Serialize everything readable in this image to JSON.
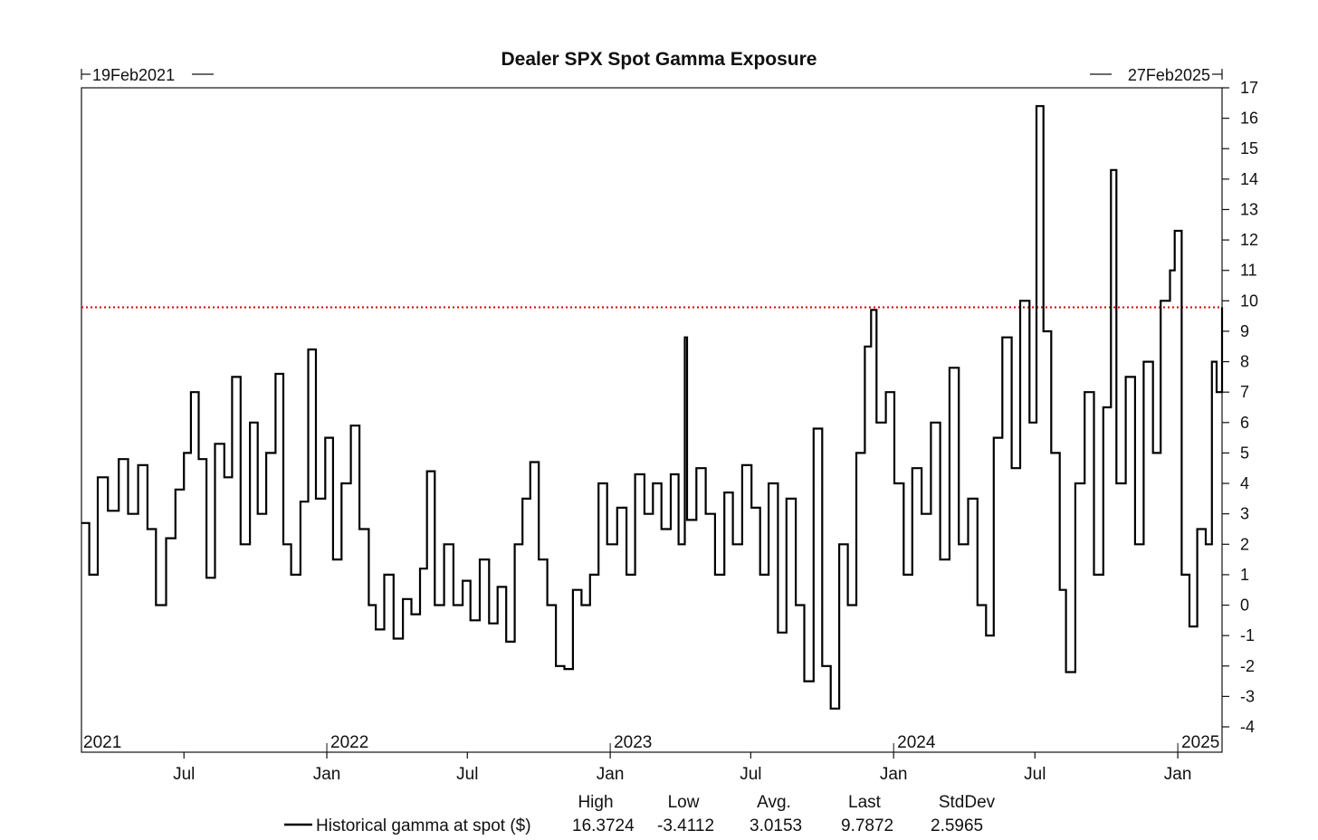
{
  "chart_data": {
    "type": "line",
    "title": "Dealer SPX Spot Gamma Exposure",
    "date_start_label": "19Feb2021",
    "date_end_label": "27Feb2025",
    "x_range": [
      "2021-02-19",
      "2025-02-27"
    ],
    "ylim": [
      -4,
      17
    ],
    "y_ticks": [
      "-4",
      "-3",
      "-2",
      "-1",
      "0",
      "1",
      "2",
      "3",
      "4",
      "5",
      "6",
      "7",
      "8",
      "9",
      "10",
      "11",
      "12",
      "13",
      "14",
      "15",
      "16",
      "17"
    ],
    "y_axis_side": "right",
    "grid": false,
    "year_labels": [
      {
        "label": "2021",
        "date": "2021-02-19"
      },
      {
        "label": "2022",
        "date": "2022-01-01"
      },
      {
        "label": "2023",
        "date": "2023-01-01"
      },
      {
        "label": "2024",
        "date": "2024-01-01"
      },
      {
        "label": "2025",
        "date": "2025-01-01"
      }
    ],
    "month_labels": [
      {
        "label": "Jul",
        "date": "2021-07-01"
      },
      {
        "label": "Jan",
        "date": "2022-01-01"
      },
      {
        "label": "Jul",
        "date": "2022-07-01"
      },
      {
        "label": "Jan",
        "date": "2023-01-01"
      },
      {
        "label": "Jul",
        "date": "2023-07-01"
      },
      {
        "label": "Jan",
        "date": "2024-01-01"
      },
      {
        "label": "Jul",
        "date": "2024-07-01"
      },
      {
        "label": "Jan",
        "date": "2025-01-01"
      }
    ],
    "reference_line": {
      "y": 9.7872,
      "color": "#d40000",
      "style": "dotted"
    },
    "series": [
      {
        "name": "Historical gamma at spot ($)",
        "color": "#000000",
        "points": [
          [
            "2021-02-19",
            2.7
          ],
          [
            "2021-03-01",
            1.0
          ],
          [
            "2021-03-12",
            4.2
          ],
          [
            "2021-03-25",
            3.1
          ],
          [
            "2021-04-08",
            4.8
          ],
          [
            "2021-04-20",
            3.0
          ],
          [
            "2021-05-03",
            4.6
          ],
          [
            "2021-05-15",
            2.5
          ],
          [
            "2021-05-26",
            0.0
          ],
          [
            "2021-06-08",
            2.2
          ],
          [
            "2021-06-20",
            3.8
          ],
          [
            "2021-07-01",
            5.0
          ],
          [
            "2021-07-10",
            7.0
          ],
          [
            "2021-07-20",
            4.8
          ],
          [
            "2021-07-30",
            0.9
          ],
          [
            "2021-08-10",
            5.3
          ],
          [
            "2021-08-22",
            4.2
          ],
          [
            "2021-09-01",
            7.5
          ],
          [
            "2021-09-12",
            2.0
          ],
          [
            "2021-09-24",
            6.0
          ],
          [
            "2021-10-04",
            3.0
          ],
          [
            "2021-10-15",
            5.0
          ],
          [
            "2021-10-27",
            7.6
          ],
          [
            "2021-11-06",
            2.0
          ],
          [
            "2021-11-16",
            1.0
          ],
          [
            "2021-11-28",
            3.4
          ],
          [
            "2021-12-08",
            8.4
          ],
          [
            "2021-12-18",
            3.5
          ],
          [
            "2021-12-30",
            5.5
          ],
          [
            "2022-01-09",
            1.5
          ],
          [
            "2022-01-20",
            4.0
          ],
          [
            "2022-02-01",
            5.9
          ],
          [
            "2022-02-12",
            2.5
          ],
          [
            "2022-02-24",
            0.0
          ],
          [
            "2022-03-05",
            -0.8
          ],
          [
            "2022-03-16",
            1.0
          ],
          [
            "2022-03-28",
            -1.1
          ],
          [
            "2022-04-09",
            0.2
          ],
          [
            "2022-04-20",
            -0.3
          ],
          [
            "2022-05-01",
            1.2
          ],
          [
            "2022-05-10",
            4.4
          ],
          [
            "2022-05-20",
            0.0
          ],
          [
            "2022-06-01",
            2.0
          ],
          [
            "2022-06-13",
            0.0
          ],
          [
            "2022-06-25",
            0.8
          ],
          [
            "2022-07-05",
            -0.5
          ],
          [
            "2022-07-17",
            1.5
          ],
          [
            "2022-07-29",
            -0.6
          ],
          [
            "2022-08-09",
            0.6
          ],
          [
            "2022-08-20",
            -1.2
          ],
          [
            "2022-08-31",
            2.0
          ],
          [
            "2022-09-10",
            3.5
          ],
          [
            "2022-09-20",
            4.7
          ],
          [
            "2022-10-01",
            1.5
          ],
          [
            "2022-10-12",
            0.0
          ],
          [
            "2022-10-23",
            -2.0
          ],
          [
            "2022-11-03",
            -2.1
          ],
          [
            "2022-11-14",
            0.5
          ],
          [
            "2022-11-25",
            0.0
          ],
          [
            "2022-12-06",
            1.0
          ],
          [
            "2022-12-17",
            4.0
          ],
          [
            "2022-12-28",
            2.0
          ],
          [
            "2023-01-10",
            3.2
          ],
          [
            "2023-01-22",
            1.0
          ],
          [
            "2023-02-02",
            4.3
          ],
          [
            "2023-02-14",
            3.0
          ],
          [
            "2023-02-25",
            4.0
          ],
          [
            "2023-03-08",
            2.5
          ],
          [
            "2023-03-20",
            4.3
          ],
          [
            "2023-03-30",
            2.0
          ],
          [
            "2023-04-07",
            8.8
          ],
          [
            "2023-04-10",
            2.8
          ],
          [
            "2023-04-22",
            4.5
          ],
          [
            "2023-05-04",
            3.0
          ],
          [
            "2023-05-16",
            1.0
          ],
          [
            "2023-05-28",
            3.7
          ],
          [
            "2023-06-08",
            2.0
          ],
          [
            "2023-06-20",
            4.6
          ],
          [
            "2023-07-02",
            3.2
          ],
          [
            "2023-07-13",
            1.0
          ],
          [
            "2023-07-24",
            4.0
          ],
          [
            "2023-08-05",
            -0.9
          ],
          [
            "2023-08-16",
            3.5
          ],
          [
            "2023-08-28",
            0.0
          ],
          [
            "2023-09-08",
            -2.5
          ],
          [
            "2023-09-20",
            5.8
          ],
          [
            "2023-10-01",
            -2.0
          ],
          [
            "2023-10-12",
            -3.4
          ],
          [
            "2023-10-23",
            2.0
          ],
          [
            "2023-11-03",
            0.0
          ],
          [
            "2023-11-14",
            5.0
          ],
          [
            "2023-11-25",
            8.5
          ],
          [
            "2023-12-03",
            9.7
          ],
          [
            "2023-12-10",
            6.0
          ],
          [
            "2023-12-22",
            7.0
          ],
          [
            "2024-01-02",
            4.0
          ],
          [
            "2024-01-14",
            1.0
          ],
          [
            "2024-01-25",
            4.5
          ],
          [
            "2024-02-06",
            3.0
          ],
          [
            "2024-02-18",
            6.0
          ],
          [
            "2024-03-01",
            1.5
          ],
          [
            "2024-03-13",
            7.8
          ],
          [
            "2024-03-25",
            2.0
          ],
          [
            "2024-04-06",
            3.5
          ],
          [
            "2024-04-18",
            0.0
          ],
          [
            "2024-04-29",
            -1.0
          ],
          [
            "2024-05-09",
            5.5
          ],
          [
            "2024-05-20",
            8.8
          ],
          [
            "2024-06-01",
            4.5
          ],
          [
            "2024-06-12",
            10.0
          ],
          [
            "2024-06-24",
            6.0
          ],
          [
            "2024-07-03",
            16.4
          ],
          [
            "2024-07-12",
            9.0
          ],
          [
            "2024-07-22",
            5.0
          ],
          [
            "2024-08-02",
            0.5
          ],
          [
            "2024-08-10",
            -2.2
          ],
          [
            "2024-08-22",
            4.0
          ],
          [
            "2024-09-03",
            7.0
          ],
          [
            "2024-09-15",
            1.0
          ],
          [
            "2024-09-27",
            6.5
          ],
          [
            "2024-10-07",
            14.3
          ],
          [
            "2024-10-14",
            4.0
          ],
          [
            "2024-10-26",
            7.5
          ],
          [
            "2024-11-07",
            2.0
          ],
          [
            "2024-11-18",
            8.0
          ],
          [
            "2024-11-30",
            5.0
          ],
          [
            "2024-12-10",
            10.0
          ],
          [
            "2024-12-22",
            11.0
          ],
          [
            "2024-12-28",
            12.3
          ],
          [
            "2025-01-06",
            1.0
          ],
          [
            "2025-01-16",
            -0.7
          ],
          [
            "2025-01-26",
            2.5
          ],
          [
            "2025-02-06",
            2.0
          ],
          [
            "2025-02-14",
            8.0
          ],
          [
            "2025-02-20",
            7.0
          ],
          [
            "2025-02-27",
            9.7872
          ]
        ]
      }
    ],
    "legend": {
      "placement": "bottom",
      "stats_headers": [
        "High",
        "Low",
        "Avg.",
        "Last",
        "StdDev"
      ],
      "stats_values": [
        "16.3724",
        "-3.4112",
        "3.0153",
        "9.7872",
        "2.5965"
      ]
    }
  }
}
